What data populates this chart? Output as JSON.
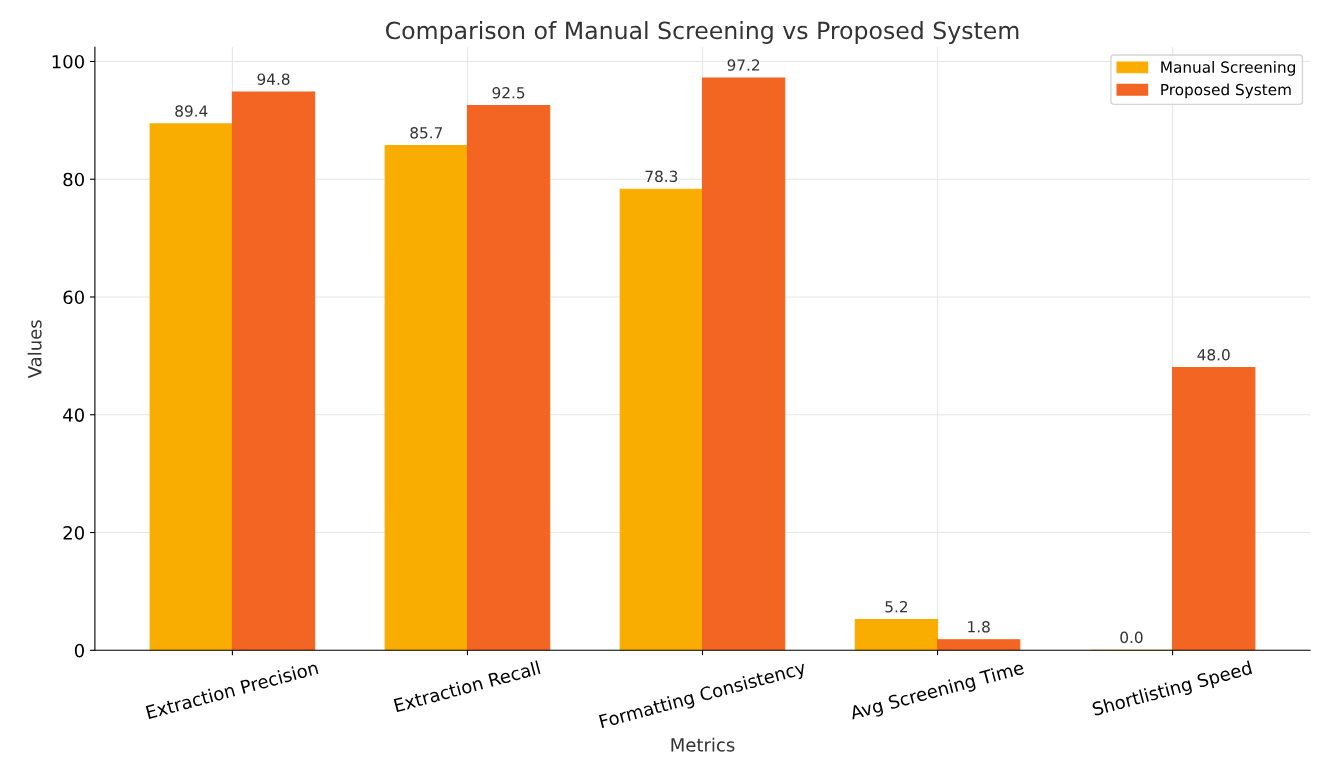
{
  "chart_data": {
    "type": "bar",
    "title": "Comparison of Manual Screening vs Proposed System",
    "xlabel": "Metrics",
    "ylabel": "Values",
    "categories": [
      "Extraction Precision",
      "Extraction Recall",
      "Formatting Consistency",
      "Avg Screening Time",
      "Shortlisting Speed"
    ],
    "series": [
      {
        "name": "Manual Screening",
        "color": "#f9ad00",
        "values": [
          89.4,
          85.7,
          78.3,
          5.2,
          0.0
        ],
        "value_labels": [
          "89.4",
          "85.7",
          "78.3",
          "5.2",
          "0.0"
        ]
      },
      {
        "name": "Proposed System",
        "color": "#f26522",
        "values": [
          94.8,
          92.5,
          97.2,
          1.8,
          48.0
        ],
        "value_labels": [
          "94.8",
          "92.5",
          "97.2",
          "1.8",
          "48.0"
        ]
      }
    ],
    "ylim": [
      0,
      102.4
    ],
    "yticks": [
      0,
      20,
      40,
      60,
      80,
      100
    ],
    "grid": true,
    "legend": "top right"
  }
}
